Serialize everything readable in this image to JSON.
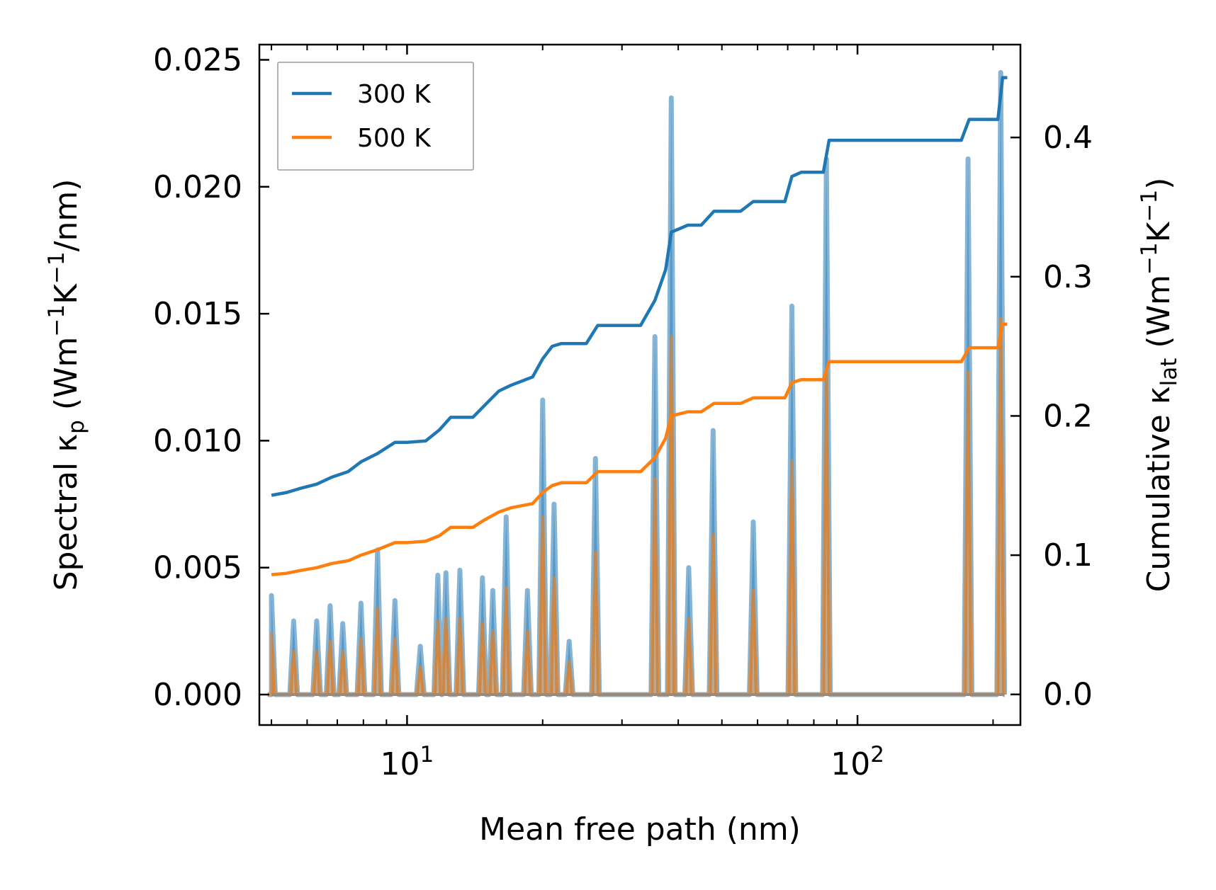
{
  "chart_data": {
    "type": "line",
    "title": "",
    "xlabel": "Mean free path (nm)",
    "xscale": "log",
    "xlim": [
      4.7,
      230
    ],
    "xticks": [
      {
        "value": 10,
        "base": "10",
        "exp": "1"
      },
      {
        "value": 100,
        "base": "10",
        "exp": "2"
      }
    ],
    "ylabel_left": {
      "prefix": "Spectral κ",
      "sub": "p",
      "mid1": " (Wm",
      "sup1": "−1",
      "mid2": "K",
      "sup2": "−1",
      "suffix": "/nm)"
    },
    "ylim_left": [
      -0.0012,
      0.0256
    ],
    "yticks_left": [
      "0.000",
      "0.005",
      "0.010",
      "0.015",
      "0.020",
      "0.025"
    ],
    "ylabel_right": {
      "prefix": "Cumulative κ",
      "sub": "lat",
      "mid1": " (Wm",
      "sup1": "−1",
      "mid2": "K",
      "sup2": "−1",
      "suffix": ")"
    },
    "ylim_right": [
      -0.022,
      0.4667
    ],
    "yticks_right": [
      "0.0",
      "0.1",
      "0.2",
      "0.3",
      "0.4"
    ],
    "legend": {
      "location": "upper-left",
      "entries": [
        "300 K",
        "500 K"
      ]
    },
    "colors": {
      "300 K": "#1f77b4",
      "500 K": "#ff7f0e",
      "fill_300": "#1f77b4",
      "fill_500": "#ff7f0e"
    },
    "spectral_series": [
      {
        "name": "300 K",
        "axis": "left",
        "peaks": [
          [
            5.0,
            0.0039
          ],
          [
            5.6,
            0.0029
          ],
          [
            6.3,
            0.0029
          ],
          [
            6.75,
            0.0035
          ],
          [
            7.2,
            0.0028
          ],
          [
            7.9,
            0.0036
          ],
          [
            8.6,
            0.0057
          ],
          [
            9.4,
            0.0037
          ],
          [
            10.7,
            0.0019
          ],
          [
            11.7,
            0.0047
          ],
          [
            12.2,
            0.0048
          ],
          [
            13.1,
            0.0049
          ],
          [
            14.7,
            0.0046
          ],
          [
            15.5,
            0.0041
          ],
          [
            16.6,
            0.007
          ],
          [
            18.5,
            0.0041
          ],
          [
            20.0,
            0.0116
          ],
          [
            21.2,
            0.0075
          ],
          [
            22.9,
            0.0021
          ],
          [
            26.2,
            0.0093
          ],
          [
            35.5,
            0.0141
          ],
          [
            38.6,
            0.0235
          ],
          [
            42.2,
            0.005
          ],
          [
            47.8,
            0.0104
          ],
          [
            58.7,
            0.0068
          ],
          [
            71.5,
            0.0153
          ],
          [
            85.3,
            0.0211
          ],
          [
            176.0,
            0.0211
          ],
          [
            208.0,
            0.0245
          ]
        ]
      },
      {
        "name": "500 K",
        "axis": "left",
        "peaks": [
          [
            5.0,
            0.0024
          ],
          [
            5.6,
            0.0017
          ],
          [
            6.3,
            0.0017
          ],
          [
            6.75,
            0.0021
          ],
          [
            7.2,
            0.0017
          ],
          [
            7.9,
            0.0022
          ],
          [
            8.6,
            0.0034
          ],
          [
            9.4,
            0.0022
          ],
          [
            10.7,
            0.0011
          ],
          [
            11.7,
            0.0029
          ],
          [
            12.2,
            0.003
          ],
          [
            13.1,
            0.003
          ],
          [
            14.7,
            0.0028
          ],
          [
            15.5,
            0.0025
          ],
          [
            16.6,
            0.0042
          ],
          [
            18.5,
            0.0025
          ],
          [
            20.0,
            0.007
          ],
          [
            21.2,
            0.0046
          ],
          [
            22.9,
            0.0013
          ],
          [
            26.2,
            0.0056
          ],
          [
            35.5,
            0.0085
          ],
          [
            38.6,
            0.0141
          ],
          [
            42.2,
            0.003
          ],
          [
            47.8,
            0.0063
          ],
          [
            58.7,
            0.0041
          ],
          [
            71.5,
            0.0092
          ],
          [
            85.3,
            0.0127
          ],
          [
            176.0,
            0.0127
          ],
          [
            208.0,
            0.0148
          ]
        ]
      }
    ],
    "cumulative_series": [
      {
        "name": "300 K",
        "axis": "right",
        "points": [
          [
            5.0,
            0.143
          ],
          [
            5.4,
            0.145
          ],
          [
            5.8,
            0.148
          ],
          [
            6.3,
            0.151
          ],
          [
            6.8,
            0.156
          ],
          [
            7.4,
            0.16
          ],
          [
            7.9,
            0.167
          ],
          [
            8.6,
            0.173
          ],
          [
            9.4,
            0.181
          ],
          [
            10.0,
            0.181
          ],
          [
            11.0,
            0.182
          ],
          [
            11.8,
            0.19
          ],
          [
            12.5,
            0.199
          ],
          [
            14.0,
            0.199
          ],
          [
            14.8,
            0.207
          ],
          [
            16.0,
            0.218
          ],
          [
            17.0,
            0.222
          ],
          [
            19.0,
            0.228
          ],
          [
            20.0,
            0.241
          ],
          [
            21.0,
            0.25
          ],
          [
            22.0,
            0.252
          ],
          [
            25.0,
            0.252
          ],
          [
            26.5,
            0.265
          ],
          [
            33.0,
            0.265
          ],
          [
            35.5,
            0.283
          ],
          [
            37.5,
            0.305
          ],
          [
            38.6,
            0.332
          ],
          [
            42.0,
            0.337
          ],
          [
            45.0,
            0.337
          ],
          [
            48.0,
            0.347
          ],
          [
            55.0,
            0.347
          ],
          [
            58.7,
            0.354
          ],
          [
            69.0,
            0.354
          ],
          [
            71.5,
            0.372
          ],
          [
            75.0,
            0.375
          ],
          [
            84.0,
            0.375
          ],
          [
            86.5,
            0.398
          ],
          [
            170.0,
            0.398
          ],
          [
            177.0,
            0.413
          ],
          [
            205.0,
            0.413
          ],
          [
            210.0,
            0.443
          ],
          [
            215.0,
            0.443
          ]
        ]
      },
      {
        "name": "500 K",
        "axis": "right",
        "points": [
          [
            5.0,
            0.086
          ],
          [
            5.4,
            0.087
          ],
          [
            5.8,
            0.089
          ],
          [
            6.3,
            0.091
          ],
          [
            6.8,
            0.094
          ],
          [
            7.4,
            0.096
          ],
          [
            7.9,
            0.1
          ],
          [
            8.6,
            0.104
          ],
          [
            9.4,
            0.109
          ],
          [
            10.0,
            0.109
          ],
          [
            11.0,
            0.11
          ],
          [
            11.8,
            0.114
          ],
          [
            12.5,
            0.12
          ],
          [
            14.0,
            0.12
          ],
          [
            14.8,
            0.125
          ],
          [
            16.0,
            0.131
          ],
          [
            17.0,
            0.134
          ],
          [
            19.0,
            0.137
          ],
          [
            20.0,
            0.145
          ],
          [
            21.0,
            0.15
          ],
          [
            22.0,
            0.152
          ],
          [
            25.0,
            0.152
          ],
          [
            26.5,
            0.16
          ],
          [
            33.0,
            0.16
          ],
          [
            35.5,
            0.17
          ],
          [
            37.5,
            0.184
          ],
          [
            38.6,
            0.2
          ],
          [
            42.0,
            0.203
          ],
          [
            45.0,
            0.203
          ],
          [
            48.0,
            0.209
          ],
          [
            55.0,
            0.209
          ],
          [
            58.7,
            0.213
          ],
          [
            69.0,
            0.213
          ],
          [
            71.5,
            0.224
          ],
          [
            75.0,
            0.226
          ],
          [
            84.0,
            0.226
          ],
          [
            86.5,
            0.239
          ],
          [
            170.0,
            0.239
          ],
          [
            177.0,
            0.249
          ],
          [
            205.0,
            0.249
          ],
          [
            210.0,
            0.266
          ],
          [
            215.0,
            0.266
          ]
        ]
      }
    ]
  }
}
